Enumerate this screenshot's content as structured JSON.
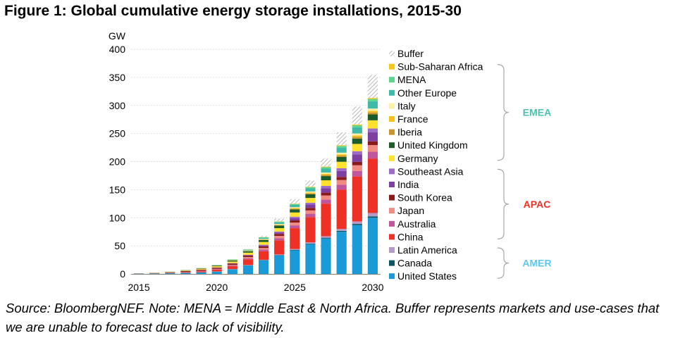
{
  "title": "Figure 1: Global cumulative energy storage installations, 2015-30",
  "source_note": "Source: BloombergNEF. Note: MENA = Middle East & North Africa. Buffer represents markets and use-cases that we are unable to forecast due to lack of visibility.",
  "chart_data": {
    "type": "bar",
    "stacked": true,
    "ylabel": "GW",
    "ylim": [
      0,
      400
    ],
    "yticks": [
      0,
      50,
      100,
      150,
      200,
      250,
      300,
      350,
      400
    ],
    "xtick_labels": [
      "2015",
      "2020",
      "2025",
      "2030"
    ],
    "categories": [
      "2015",
      "2016",
      "2017",
      "2018",
      "2019",
      "2020",
      "2021",
      "2022",
      "2023",
      "2024",
      "2025",
      "2026",
      "2027",
      "2028",
      "2029",
      "2030"
    ],
    "grid": "horizontal-dotted",
    "legend_position": "right",
    "groups": [
      {
        "name": "EMEA",
        "color": "#4dbfb0",
        "from": "Germany",
        "to": "Sub-Saharan Africa"
      },
      {
        "name": "APAC",
        "color": "#ee3124",
        "from": "China",
        "to": "Southeast Asia"
      },
      {
        "name": "AMER",
        "color": "#5bc8f0",
        "from": "United States",
        "to": "Latin America"
      }
    ],
    "series": [
      {
        "name": "United States",
        "color": "#1a9ad6",
        "values": [
          0.5,
          0.8,
          1.2,
          1.8,
          2.5,
          4,
          8,
          15,
          24,
          33,
          42,
          53,
          63,
          75,
          87,
          100
        ]
      },
      {
        "name": "Canada",
        "color": "#0b5563",
        "values": [
          0.05,
          0.05,
          0.1,
          0.1,
          0.1,
          0.2,
          0.3,
          0.4,
          0.5,
          0.7,
          0.9,
          1.1,
          1.4,
          1.7,
          2,
          2.5
        ]
      },
      {
        "name": "Latin America",
        "color": "#b49ac8",
        "values": [
          0.05,
          0.05,
          0.1,
          0.1,
          0.2,
          0.3,
          0.4,
          0.5,
          0.7,
          1,
          1.5,
          2,
          2.8,
          3.5,
          4.5,
          6
        ]
      },
      {
        "name": "China",
        "color": "#ee3124",
        "values": [
          0.2,
          0.3,
          0.5,
          1,
          1.8,
          3,
          5,
          10,
          15,
          25,
          37,
          45,
          58,
          70,
          80,
          97
        ]
      },
      {
        "name": "Australia",
        "color": "#c0569b",
        "values": [
          0.05,
          0.1,
          0.2,
          0.3,
          0.5,
          0.8,
          1.2,
          2,
          3,
          4,
          5,
          6,
          7,
          8.5,
          10,
          12
        ]
      },
      {
        "name": "Japan",
        "color": "#f08c80",
        "values": [
          0.05,
          0.1,
          0.2,
          0.3,
          0.5,
          0.8,
          1.2,
          2,
          3,
          4,
          5,
          6,
          7.5,
          8.5,
          10,
          12
        ]
      },
      {
        "name": "South Korea",
        "color": "#8b1a1a",
        "values": [
          0.1,
          0.3,
          0.6,
          1.5,
          1.8,
          2,
          2.3,
          2.6,
          3,
          3.5,
          4,
          4.5,
          5,
          5.5,
          6,
          6.5
        ]
      },
      {
        "name": "India",
        "color": "#7f3fa0",
        "values": [
          0,
          0,
          0,
          0.05,
          0.1,
          0.2,
          0.4,
          0.8,
          1.5,
          2.5,
          4,
          6,
          8,
          10.5,
          13,
          16
        ]
      },
      {
        "name": "Southeast Asia",
        "color": "#9b6cc8",
        "values": [
          0,
          0,
          0.05,
          0.1,
          0.2,
          0.3,
          0.5,
          0.8,
          1.2,
          1.8,
          2.5,
          3.2,
          4,
          5,
          6,
          7
        ]
      },
      {
        "name": "Germany",
        "color": "#fee22e",
        "values": [
          0.2,
          0.3,
          0.5,
          0.8,
          1.2,
          2,
          2.8,
          3.8,
          5,
          6,
          7.5,
          8.5,
          10,
          11.5,
          13,
          14.5
        ]
      },
      {
        "name": "United Kingdom",
        "color": "#1a5c2a",
        "values": [
          0.05,
          0.1,
          0.3,
          0.5,
          0.8,
          1.2,
          1.8,
          2.5,
          3.5,
          4.5,
          5.5,
          6.5,
          7.5,
          8.5,
          9.5,
          10.5
        ]
      },
      {
        "name": "Iberia",
        "color": "#c7962f",
        "values": [
          0,
          0,
          0,
          0.05,
          0.1,
          0.1,
          0.2,
          0.3,
          0.5,
          0.8,
          1.2,
          1.6,
          2,
          2.5,
          3,
          3.5
        ]
      },
      {
        "name": "France",
        "color": "#f8c11a",
        "values": [
          0,
          0.05,
          0.1,
          0.1,
          0.2,
          0.3,
          0.4,
          0.5,
          0.7,
          0.9,
          1.2,
          1.5,
          1.8,
          2.2,
          2.6,
          3
        ]
      },
      {
        "name": "Italy",
        "color": "#fdf0a8",
        "values": [
          0,
          0,
          0.05,
          0.05,
          0.1,
          0.2,
          0.3,
          0.5,
          0.8,
          1.2,
          1.6,
          2,
          2.5,
          3,
          3.5,
          4
        ]
      },
      {
        "name": "Other Europe",
        "color": "#3fb9a8",
        "values": [
          0,
          0.05,
          0.1,
          0.2,
          0.3,
          0.5,
          0.8,
          1.3,
          2,
          3,
          4,
          5.5,
          7,
          9,
          11,
          13
        ]
      },
      {
        "name": "MENA",
        "color": "#5cd68a",
        "values": [
          0,
          0,
          0.05,
          0.05,
          0.1,
          0.2,
          0.3,
          0.5,
          0.8,
          1.2,
          1.6,
          2,
          2.5,
          3,
          3.5,
          4
        ]
      },
      {
        "name": "Sub-Saharan Africa",
        "color": "#f5c518",
        "values": [
          0,
          0,
          0.05,
          0.05,
          0.1,
          0.1,
          0.2,
          0.3,
          0.4,
          0.5,
          0.7,
          0.9,
          1.1,
          1.3,
          1.5,
          1.8
        ]
      },
      {
        "name": "Buffer",
        "color": "hatched-gray",
        "values": [
          0,
          0,
          0,
          0,
          0,
          0,
          0,
          0,
          2,
          5,
          8,
          11,
          14,
          23,
          32,
          41
        ]
      }
    ]
  }
}
